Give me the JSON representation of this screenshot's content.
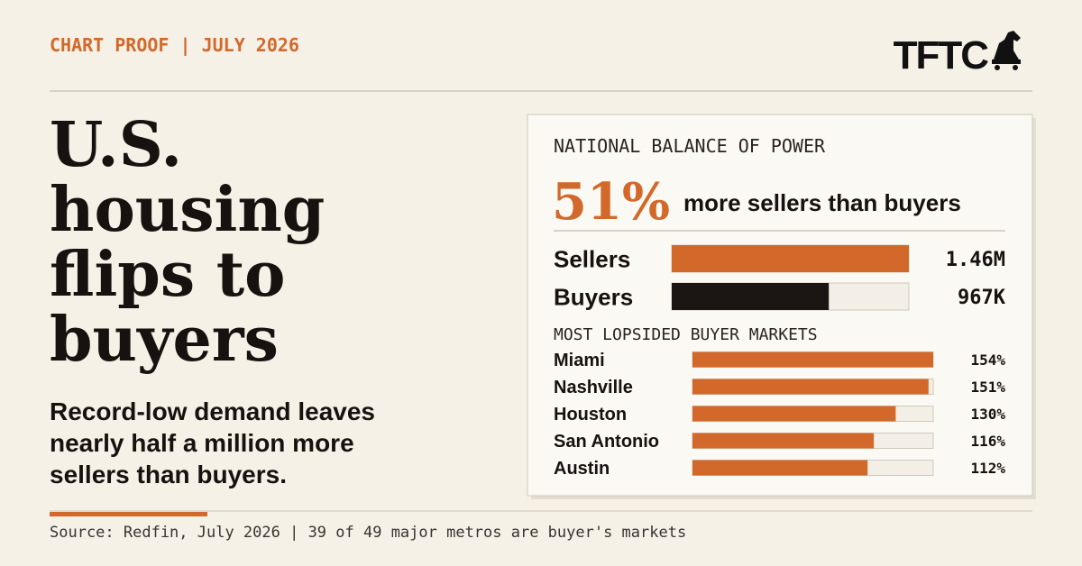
{
  "header": {
    "kicker": "CHART PROOF | JULY 2026",
    "brand": "TFTC"
  },
  "headline": [
    "U.S.",
    "housing",
    "flips to",
    "buyers"
  ],
  "subhead": [
    "Record-low demand leaves",
    "nearly half a million more",
    "sellers than buyers."
  ],
  "panel": {
    "title": "NATIONAL BALANCE OF POWER",
    "stat": "51%",
    "stat_text": "more sellers than buyers"
  },
  "chart_data": [
    {
      "type": "bar",
      "categories": [
        "Sellers",
        "Buyers"
      ],
      "values": [
        1460000,
        967000
      ],
      "value_labels": [
        "1.46M",
        "967K"
      ],
      "colors": [
        "#d2692a",
        "#1b1613"
      ]
    },
    {
      "type": "bar",
      "title": "MOST LOPSIDED BUYER MARKETS",
      "categories": [
        "Miami",
        "Nashville",
        "Houston",
        "San Antonio",
        "Austin"
      ],
      "values": [
        154,
        151,
        130,
        116,
        112
      ],
      "value_labels": [
        "154%",
        "151%",
        "130%",
        "116%",
        "112%"
      ],
      "color": "#d2692a"
    }
  ],
  "footer": {
    "source": "Source: Redfin, July 2026 | 39 of 49 major metros are buyer's markets"
  }
}
